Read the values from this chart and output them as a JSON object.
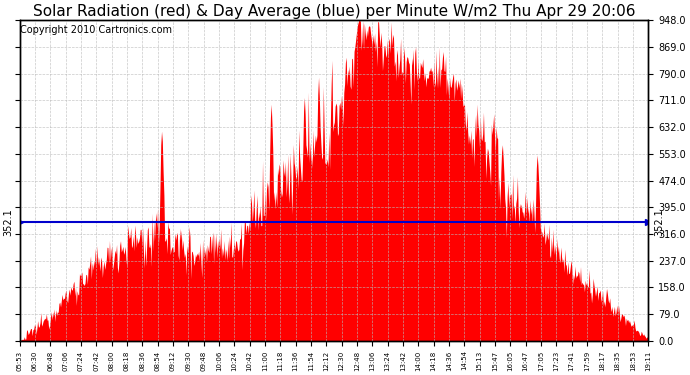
{
  "title": "Solar Radiation (red) & Day Average (blue) per Minute W/m2 Thu Apr 29 20:06",
  "copyright": "Copyright 2010 Cartronics.com",
  "day_average": 352.1,
  "y_max": 948.0,
  "y_min": 0.0,
  "y_ticks": [
    0.0,
    79.0,
    158.0,
    237.0,
    316.0,
    395.0,
    474.0,
    553.0,
    632.0,
    711.0,
    790.0,
    869.0,
    948.0
  ],
  "fill_color": "#FF0000",
  "line_color": "#0000CC",
  "background_color": "#FFFFFF",
  "grid_color": "#BBBBBB",
  "title_fontsize": 11,
  "copyright_fontsize": 7,
  "x_tick_labels": [
    "05:53",
    "06:30",
    "06:48",
    "07:06",
    "07:24",
    "07:42",
    "08:00",
    "08:18",
    "08:36",
    "08:54",
    "09:12",
    "09:30",
    "09:48",
    "10:06",
    "10:24",
    "10:42",
    "11:00",
    "11:18",
    "11:36",
    "11:54",
    "12:12",
    "12:30",
    "12:48",
    "13:06",
    "13:24",
    "13:42",
    "14:00",
    "14:18",
    "14:36",
    "14:54",
    "15:13",
    "15:47",
    "16:05",
    "16:47",
    "17:05",
    "17:23",
    "17:41",
    "17:59",
    "18:17",
    "18:35",
    "18:53",
    "19:11"
  ]
}
